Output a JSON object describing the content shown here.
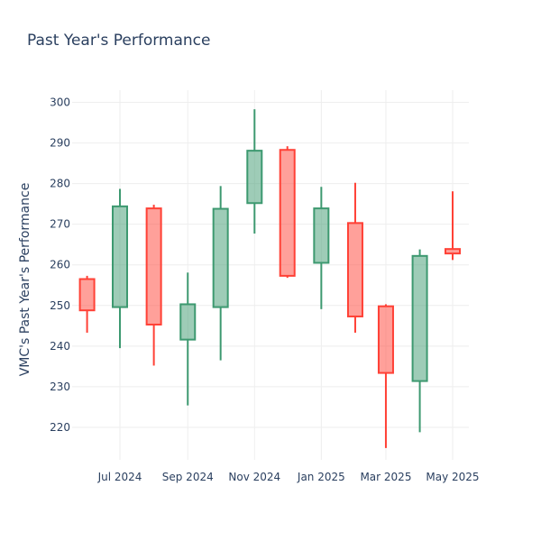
{
  "chart_data": {
    "type": "candlestick",
    "title": "Past Year's Performance",
    "xlabel": "",
    "ylabel": "VMC's Past Year's Performance",
    "ylim": [
      212,
      303
    ],
    "y_ticks": [
      220,
      230,
      240,
      250,
      260,
      270,
      280,
      290,
      300
    ],
    "x_ticks": [
      {
        "label": "Jul 2024",
        "date": "2024-07-01"
      },
      {
        "label": "Sep 2024",
        "date": "2024-09-01"
      },
      {
        "label": "Nov 2024",
        "date": "2024-11-01"
      },
      {
        "label": "Jan 2025",
        "date": "2025-01-01"
      },
      {
        "label": "Mar 2025",
        "date": "2025-03-01"
      },
      {
        "label": "May 2025",
        "date": "2025-05-01"
      }
    ],
    "grid": true,
    "colors": {
      "increasing": "#3d9970",
      "decreasing": "#ff4136",
      "text": "#2a3f5f",
      "grid": "#eeeeee"
    },
    "candles": [
      {
        "date": "2024-06-01",
        "open": 256.5,
        "high": 257.3,
        "low": 243.3,
        "close": 248.8
      },
      {
        "date": "2024-07-01",
        "open": 249.6,
        "high": 278.7,
        "low": 239.5,
        "close": 274.4
      },
      {
        "date": "2024-08-01",
        "open": 273.9,
        "high": 274.8,
        "low": 235.2,
        "close": 245.3
      },
      {
        "date": "2024-09-01",
        "open": 241.6,
        "high": 258.1,
        "low": 225.4,
        "close": 250.3
      },
      {
        "date": "2024-10-01",
        "open": 249.6,
        "high": 279.4,
        "low": 236.5,
        "close": 273.8
      },
      {
        "date": "2024-11-01",
        "open": 275.2,
        "high": 298.3,
        "low": 267.7,
        "close": 288.1
      },
      {
        "date": "2024-12-01",
        "open": 288.3,
        "high": 289.2,
        "low": 256.8,
        "close": 257.3
      },
      {
        "date": "2025-01-01",
        "open": 260.5,
        "high": 279.2,
        "low": 249.1,
        "close": 273.9
      },
      {
        "date": "2025-02-01",
        "open": 270.3,
        "high": 280.2,
        "low": 243.3,
        "close": 247.3
      },
      {
        "date": "2025-03-01",
        "open": 249.8,
        "high": 250.3,
        "low": 214.9,
        "close": 233.4
      },
      {
        "date": "2025-04-01",
        "open": 231.4,
        "high": 263.8,
        "low": 218.8,
        "close": 262.2
      },
      {
        "date": "2025-05-01",
        "open": 263.9,
        "high": 278.1,
        "low": 261.2,
        "close": 262.8
      }
    ]
  }
}
